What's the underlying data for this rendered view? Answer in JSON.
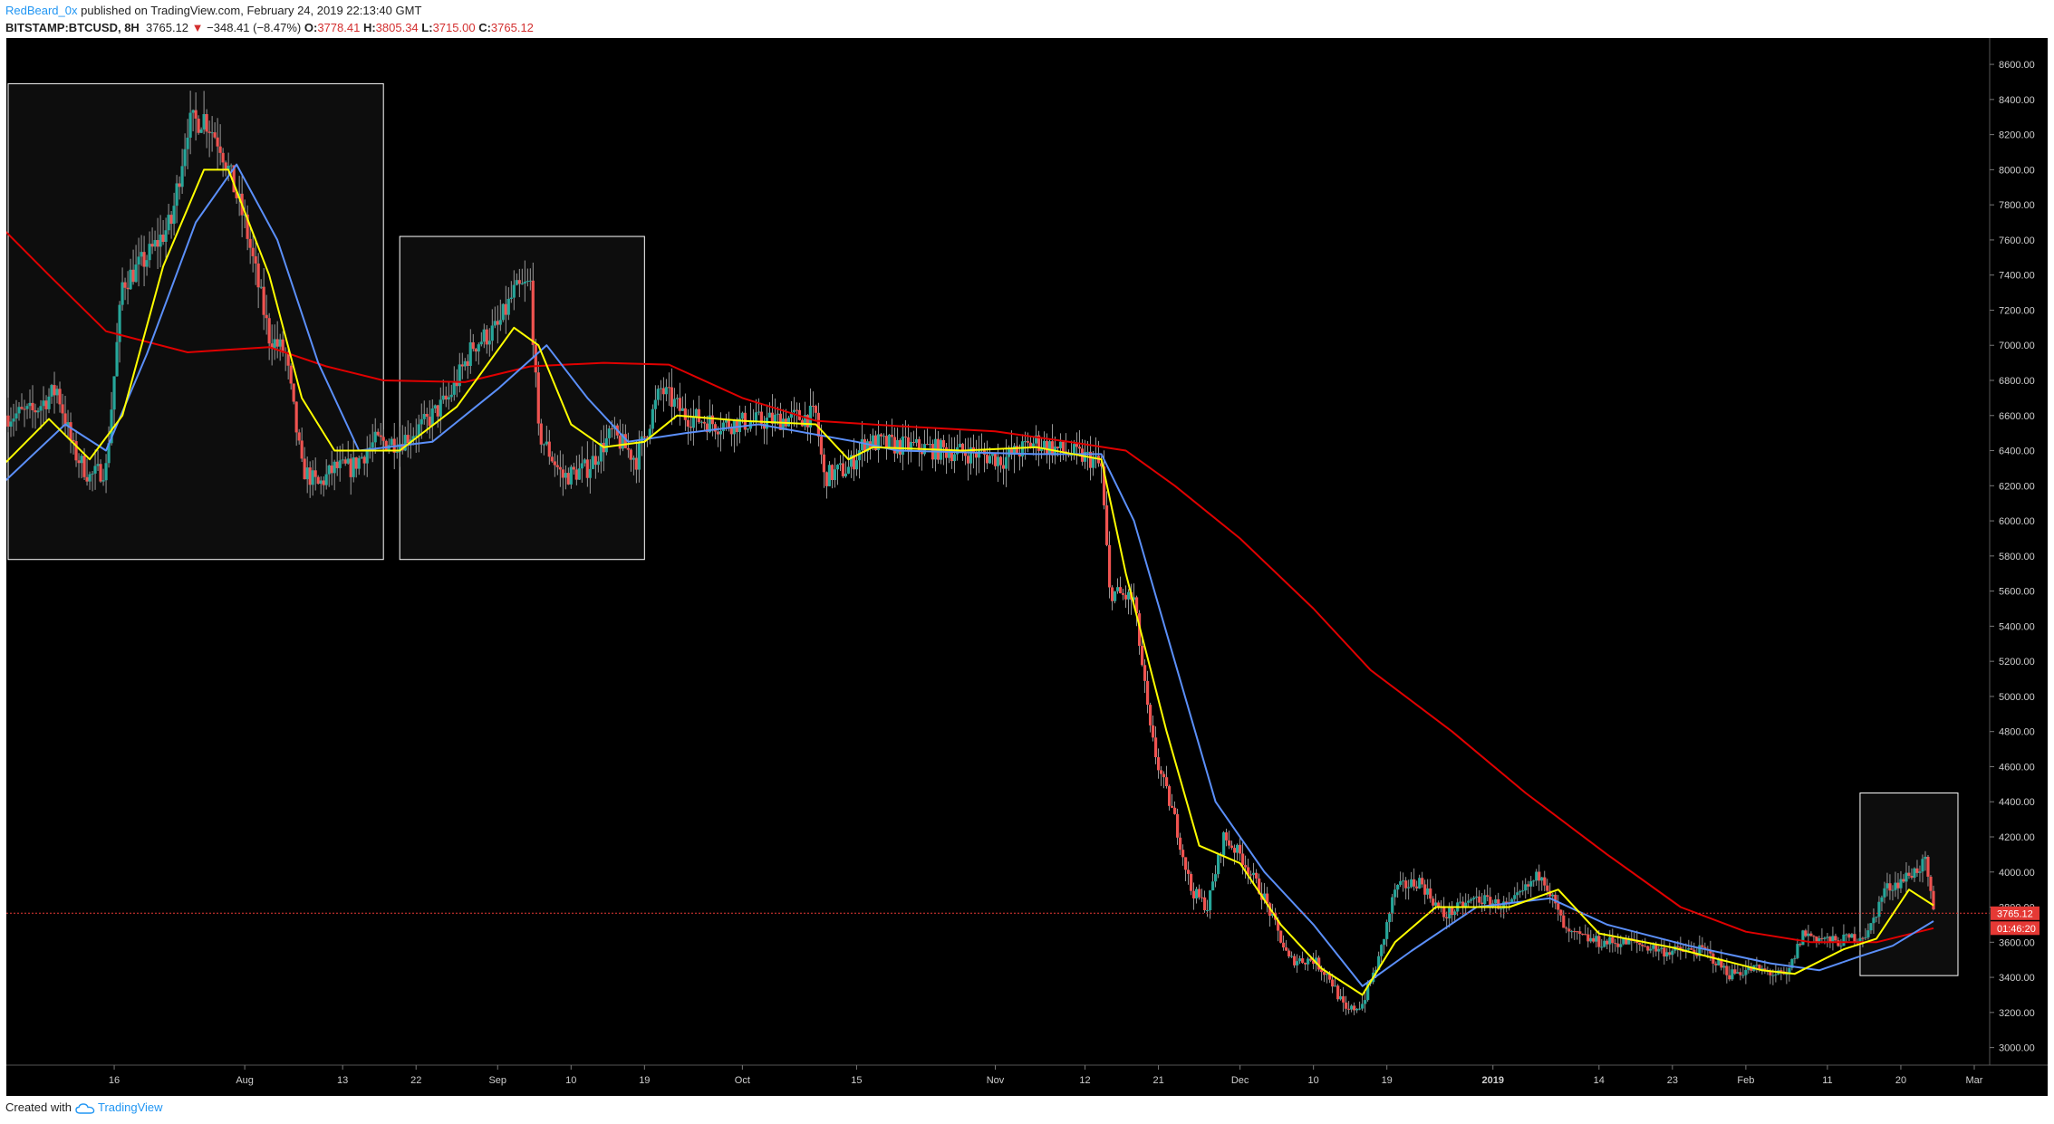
{
  "header": {
    "author": "RedBeard_0x",
    "published": "published on TradingView.com, February 24, 2019 22:13:40 GMT",
    "symbol": "BITSTAMP:BTCUSD, 8H",
    "last": "3765.12",
    "change": "−348.41 (−8.47%)",
    "o_label": "O:",
    "o": "3778.41",
    "h_label": "H:",
    "h": "3805.34",
    "l_label": "L:",
    "l": "3715.00",
    "c_label": "C:",
    "c": "3765.12"
  },
  "footer": {
    "created": "Created with",
    "brand": "TradingView"
  },
  "colors": {
    "background": "#000000",
    "up": "#26a69a",
    "down": "#ef5350",
    "ma_fast": "#ffff00",
    "ma_mid": "#5b8ff9",
    "ma_slow": "#e00000",
    "box_stroke": "#ffffff",
    "price_tag": "#e53935"
  },
  "chart_data": {
    "type": "candlestick",
    "timeframe": "8H",
    "ylim": [
      2900,
      8750
    ],
    "y_ticks": [
      "8600.00",
      "8400.00",
      "8200.00",
      "8000.00",
      "7800.00",
      "7600.00",
      "7400.00",
      "7200.00",
      "7000.00",
      "6800.00",
      "6600.00",
      "6400.00",
      "6200.00",
      "6000.00",
      "5800.00",
      "5600.00",
      "5400.00",
      "5200.00",
      "5000.00",
      "4800.00",
      "4600.00",
      "4400.00",
      "4200.00",
      "4000.00",
      "3800.00",
      "3600.00",
      "3400.00",
      "3200.00",
      "3000.00"
    ],
    "x_ticks": [
      {
        "label": "16",
        "date": "2018-07-16"
      },
      {
        "label": "Aug",
        "date": "2018-08-01"
      },
      {
        "label": "13",
        "date": "2018-08-13"
      },
      {
        "label": "22",
        "date": "2018-08-22"
      },
      {
        "label": "Sep",
        "date": "2018-09-01"
      },
      {
        "label": "10",
        "date": "2018-09-10"
      },
      {
        "label": "19",
        "date": "2018-09-19"
      },
      {
        "label": "Oct",
        "date": "2018-10-01"
      },
      {
        "label": "15",
        "date": "2018-10-15"
      },
      {
        "label": "Nov",
        "date": "2018-11-01"
      },
      {
        "label": "12",
        "date": "2018-11-12"
      },
      {
        "label": "21",
        "date": "2018-11-21"
      },
      {
        "label": "Dec",
        "date": "2018-12-01"
      },
      {
        "label": "10",
        "date": "2018-12-10"
      },
      {
        "label": "19",
        "date": "2018-12-19"
      },
      {
        "label": "2019",
        "date": "2019-01-01"
      },
      {
        "label": "14",
        "date": "2019-01-14"
      },
      {
        "label": "23",
        "date": "2019-01-23"
      },
      {
        "label": "Feb",
        "date": "2019-02-01"
      },
      {
        "label": "11",
        "date": "2019-02-11"
      },
      {
        "label": "20",
        "date": "2019-02-20"
      },
      {
        "label": "Mar",
        "date": "2019-03-01"
      }
    ],
    "price_path": [
      {
        "date": "2018-07-03",
        "close": 6600
      },
      {
        "date": "2018-07-06",
        "close": 6620
      },
      {
        "date": "2018-07-09",
        "close": 6750
      },
      {
        "date": "2018-07-11",
        "close": 6400
      },
      {
        "date": "2018-07-13",
        "close": 6250
      },
      {
        "date": "2018-07-15",
        "close": 6300
      },
      {
        "date": "2018-07-17",
        "close": 7350
      },
      {
        "date": "2018-07-20",
        "close": 7500
      },
      {
        "date": "2018-07-23",
        "close": 7700
      },
      {
        "date": "2018-07-25",
        "close": 8250
      },
      {
        "date": "2018-07-27",
        "close": 8300
      },
      {
        "date": "2018-07-29",
        "close": 8150
      },
      {
        "date": "2018-08-01",
        "close": 7700
      },
      {
        "date": "2018-08-04",
        "close": 7050
      },
      {
        "date": "2018-08-06",
        "close": 6950
      },
      {
        "date": "2018-08-08",
        "close": 6300
      },
      {
        "date": "2018-08-10",
        "close": 6200
      },
      {
        "date": "2018-08-12",
        "close": 6300
      },
      {
        "date": "2018-08-14",
        "close": 6300
      },
      {
        "date": "2018-08-17",
        "close": 6450
      },
      {
        "date": "2018-08-20",
        "close": 6450
      },
      {
        "date": "2018-08-23",
        "close": 6550
      },
      {
        "date": "2018-08-26",
        "close": 6700
      },
      {
        "date": "2018-08-29",
        "close": 7000
      },
      {
        "date": "2018-09-01",
        "close": 7100
      },
      {
        "date": "2018-09-03",
        "close": 7300
      },
      {
        "date": "2018-09-05",
        "close": 7350
      },
      {
        "date": "2018-09-06",
        "close": 6500
      },
      {
        "date": "2018-09-09",
        "close": 6250
      },
      {
        "date": "2018-09-12",
        "close": 6300
      },
      {
        "date": "2018-09-15",
        "close": 6500
      },
      {
        "date": "2018-09-18",
        "close": 6350
      },
      {
        "date": "2018-09-21",
        "close": 6750
      },
      {
        "date": "2018-09-24",
        "close": 6600
      },
      {
        "date": "2018-09-28",
        "close": 6550
      },
      {
        "date": "2018-10-04",
        "close": 6570
      },
      {
        "date": "2018-10-10",
        "close": 6600
      },
      {
        "date": "2018-10-11",
        "close": 6250
      },
      {
        "date": "2018-10-14",
        "close": 6300
      },
      {
        "date": "2018-10-16",
        "close": 6450
      },
      {
        "date": "2018-10-22",
        "close": 6420
      },
      {
        "date": "2018-10-30",
        "close": 6380
      },
      {
        "date": "2018-11-02",
        "close": 6350
      },
      {
        "date": "2018-11-06",
        "close": 6450
      },
      {
        "date": "2018-11-09",
        "close": 6400
      },
      {
        "date": "2018-11-13",
        "close": 6350
      },
      {
        "date": "2018-11-14",
        "close": 6300
      },
      {
        "date": "2018-11-15",
        "close": 5600
      },
      {
        "date": "2018-11-18",
        "close": 5550
      },
      {
        "date": "2018-11-20",
        "close": 4800
      },
      {
        "date": "2018-11-21",
        "close": 4600
      },
      {
        "date": "2018-11-23",
        "close": 4300
      },
      {
        "date": "2018-11-25",
        "close": 3900
      },
      {
        "date": "2018-11-27",
        "close": 3800
      },
      {
        "date": "2018-11-29",
        "close": 4200
      },
      {
        "date": "2018-12-01",
        "close": 4100
      },
      {
        "date": "2018-12-04",
        "close": 3850
      },
      {
        "date": "2018-12-07",
        "close": 3500
      },
      {
        "date": "2018-12-10",
        "close": 3500
      },
      {
        "date": "2018-12-12",
        "close": 3400
      },
      {
        "date": "2018-12-14",
        "close": 3200
      },
      {
        "date": "2018-12-16",
        "close": 3250
      },
      {
        "date": "2018-12-18",
        "close": 3500
      },
      {
        "date": "2018-12-20",
        "close": 3900
      },
      {
        "date": "2018-12-23",
        "close": 3950
      },
      {
        "date": "2018-12-26",
        "close": 3750
      },
      {
        "date": "2018-12-30",
        "close": 3850
      },
      {
        "date": "2019-01-03",
        "close": 3800
      },
      {
        "date": "2019-01-07",
        "close": 4000
      },
      {
        "date": "2019-01-10",
        "close": 3650
      },
      {
        "date": "2019-01-14",
        "close": 3600
      },
      {
        "date": "2019-01-18",
        "close": 3600
      },
      {
        "date": "2019-01-22",
        "close": 3550
      },
      {
        "date": "2019-01-27",
        "close": 3550
      },
      {
        "date": "2019-01-30",
        "close": 3420
      },
      {
        "date": "2019-02-02",
        "close": 3450
      },
      {
        "date": "2019-02-06",
        "close": 3400
      },
      {
        "date": "2019-02-08",
        "close": 3650
      },
      {
        "date": "2019-02-12",
        "close": 3600
      },
      {
        "date": "2019-02-16",
        "close": 3650
      },
      {
        "date": "2019-02-18",
        "close": 3900
      },
      {
        "date": "2019-02-20",
        "close": 3950
      },
      {
        "date": "2019-02-23",
        "close": 4050
      },
      {
        "date": "2019-02-24",
        "close": 3765
      }
    ],
    "ma_fast_path": [
      {
        "date": "2018-07-02",
        "value": 6300
      },
      {
        "date": "2018-07-08",
        "value": 6580
      },
      {
        "date": "2018-07-13",
        "value": 6350
      },
      {
        "date": "2018-07-17",
        "value": 6600
      },
      {
        "date": "2018-07-22",
        "value": 7450
      },
      {
        "date": "2018-07-27",
        "value": 8000
      },
      {
        "date": "2018-07-30",
        "value": 8000
      },
      {
        "date": "2018-08-04",
        "value": 7400
      },
      {
        "date": "2018-08-08",
        "value": 6700
      },
      {
        "date": "2018-08-12",
        "value": 6400
      },
      {
        "date": "2018-08-20",
        "value": 6400
      },
      {
        "date": "2018-08-27",
        "value": 6650
      },
      {
        "date": "2018-09-03",
        "value": 7100
      },
      {
        "date": "2018-09-06",
        "value": 7000
      },
      {
        "date": "2018-09-10",
        "value": 6550
      },
      {
        "date": "2018-09-14",
        "value": 6420
      },
      {
        "date": "2018-09-19",
        "value": 6450
      },
      {
        "date": "2018-09-23",
        "value": 6600
      },
      {
        "date": "2018-10-01",
        "value": 6570
      },
      {
        "date": "2018-10-10",
        "value": 6550
      },
      {
        "date": "2018-10-14",
        "value": 6350
      },
      {
        "date": "2018-10-17",
        "value": 6420
      },
      {
        "date": "2018-10-28",
        "value": 6400
      },
      {
        "date": "2018-11-06",
        "value": 6420
      },
      {
        "date": "2018-11-14",
        "value": 6350
      },
      {
        "date": "2018-11-17",
        "value": 5700
      },
      {
        "date": "2018-11-22",
        "value": 4800
      },
      {
        "date": "2018-11-26",
        "value": 4150
      },
      {
        "date": "2018-12-01",
        "value": 4050
      },
      {
        "date": "2018-12-06",
        "value": 3700
      },
      {
        "date": "2018-12-11",
        "value": 3450
      },
      {
        "date": "2018-12-16",
        "value": 3300
      },
      {
        "date": "2018-12-20",
        "value": 3600
      },
      {
        "date": "2018-12-25",
        "value": 3800
      },
      {
        "date": "2019-01-03",
        "value": 3800
      },
      {
        "date": "2019-01-09",
        "value": 3900
      },
      {
        "date": "2019-01-14",
        "value": 3650
      },
      {
        "date": "2019-01-23",
        "value": 3570
      },
      {
        "date": "2019-02-03",
        "value": 3440
      },
      {
        "date": "2019-02-07",
        "value": 3420
      },
      {
        "date": "2019-02-13",
        "value": 3560
      },
      {
        "date": "2019-02-17",
        "value": 3620
      },
      {
        "date": "2019-02-21",
        "value": 3900
      },
      {
        "date": "2019-02-24",
        "value": 3810
      }
    ],
    "ma_mid_path": [
      {
        "date": "2018-07-02",
        "value": 6200
      },
      {
        "date": "2018-07-10",
        "value": 6550
      },
      {
        "date": "2018-07-15",
        "value": 6400
      },
      {
        "date": "2018-07-20",
        "value": 6950
      },
      {
        "date": "2018-07-26",
        "value": 7700
      },
      {
        "date": "2018-07-31",
        "value": 8030
      },
      {
        "date": "2018-08-05",
        "value": 7600
      },
      {
        "date": "2018-08-10",
        "value": 6900
      },
      {
        "date": "2018-08-15",
        "value": 6400
      },
      {
        "date": "2018-08-24",
        "value": 6450
      },
      {
        "date": "2018-09-01",
        "value": 6750
      },
      {
        "date": "2018-09-07",
        "value": 7000
      },
      {
        "date": "2018-09-12",
        "value": 6700
      },
      {
        "date": "2018-09-17",
        "value": 6450
      },
      {
        "date": "2018-09-24",
        "value": 6500
      },
      {
        "date": "2018-10-03",
        "value": 6550
      },
      {
        "date": "2018-10-15",
        "value": 6450
      },
      {
        "date": "2018-10-20",
        "value": 6400
      },
      {
        "date": "2018-11-06",
        "value": 6380
      },
      {
        "date": "2018-11-14",
        "value": 6380
      },
      {
        "date": "2018-11-18",
        "value": 6000
      },
      {
        "date": "2018-11-23",
        "value": 5200
      },
      {
        "date": "2018-11-28",
        "value": 4400
      },
      {
        "date": "2018-12-04",
        "value": 4000
      },
      {
        "date": "2018-12-10",
        "value": 3700
      },
      {
        "date": "2018-12-16",
        "value": 3350
      },
      {
        "date": "2018-12-22",
        "value": 3550
      },
      {
        "date": "2018-12-30",
        "value": 3800
      },
      {
        "date": "2019-01-08",
        "value": 3850
      },
      {
        "date": "2019-01-15",
        "value": 3700
      },
      {
        "date": "2019-01-25",
        "value": 3580
      },
      {
        "date": "2019-02-04",
        "value": 3480
      },
      {
        "date": "2019-02-10",
        "value": 3440
      },
      {
        "date": "2019-02-15",
        "value": 3520
      },
      {
        "date": "2019-02-19",
        "value": 3580
      },
      {
        "date": "2019-02-24",
        "value": 3720
      }
    ],
    "ma_slow_path": [
      {
        "date": "2018-07-02",
        "value": 7680
      },
      {
        "date": "2018-07-08",
        "value": 7400
      },
      {
        "date": "2018-07-15",
        "value": 7080
      },
      {
        "date": "2018-07-25",
        "value": 6960
      },
      {
        "date": "2018-08-04",
        "value": 6990
      },
      {
        "date": "2018-08-11",
        "value": 6880
      },
      {
        "date": "2018-08-18",
        "value": 6800
      },
      {
        "date": "2018-08-28",
        "value": 6790
      },
      {
        "date": "2018-09-05",
        "value": 6880
      },
      {
        "date": "2018-09-14",
        "value": 6900
      },
      {
        "date": "2018-09-22",
        "value": 6890
      },
      {
        "date": "2018-10-01",
        "value": 6700
      },
      {
        "date": "2018-10-10",
        "value": 6570
      },
      {
        "date": "2018-10-20",
        "value": 6540
      },
      {
        "date": "2018-11-01",
        "value": 6510
      },
      {
        "date": "2018-11-10",
        "value": 6450
      },
      {
        "date": "2018-11-17",
        "value": 6400
      },
      {
        "date": "2018-11-23",
        "value": 6200
      },
      {
        "date": "2018-12-01",
        "value": 5900
      },
      {
        "date": "2018-12-10",
        "value": 5500
      },
      {
        "date": "2018-12-17",
        "value": 5150
      },
      {
        "date": "2018-12-27",
        "value": 4800
      },
      {
        "date": "2019-01-05",
        "value": 4450
      },
      {
        "date": "2019-01-15",
        "value": 4100
      },
      {
        "date": "2019-01-24",
        "value": 3800
      },
      {
        "date": "2019-02-01",
        "value": 3660
      },
      {
        "date": "2019-02-09",
        "value": 3600
      },
      {
        "date": "2019-02-17",
        "value": 3600
      },
      {
        "date": "2019-02-24",
        "value": 3680
      }
    ],
    "boxes": [
      {
        "from": "2018-07-03",
        "to": "2018-08-18",
        "top": 8490,
        "bottom": 5780
      },
      {
        "from": "2018-08-20",
        "to": "2018-09-19",
        "top": 7620,
        "bottom": 5780
      },
      {
        "from": "2019-02-15",
        "to": "2019-02-27",
        "top": 4450,
        "bottom": 3410
      }
    ],
    "last_price": {
      "value": 3765.12,
      "label": "3765.12",
      "countdown": "01:46:20"
    }
  }
}
